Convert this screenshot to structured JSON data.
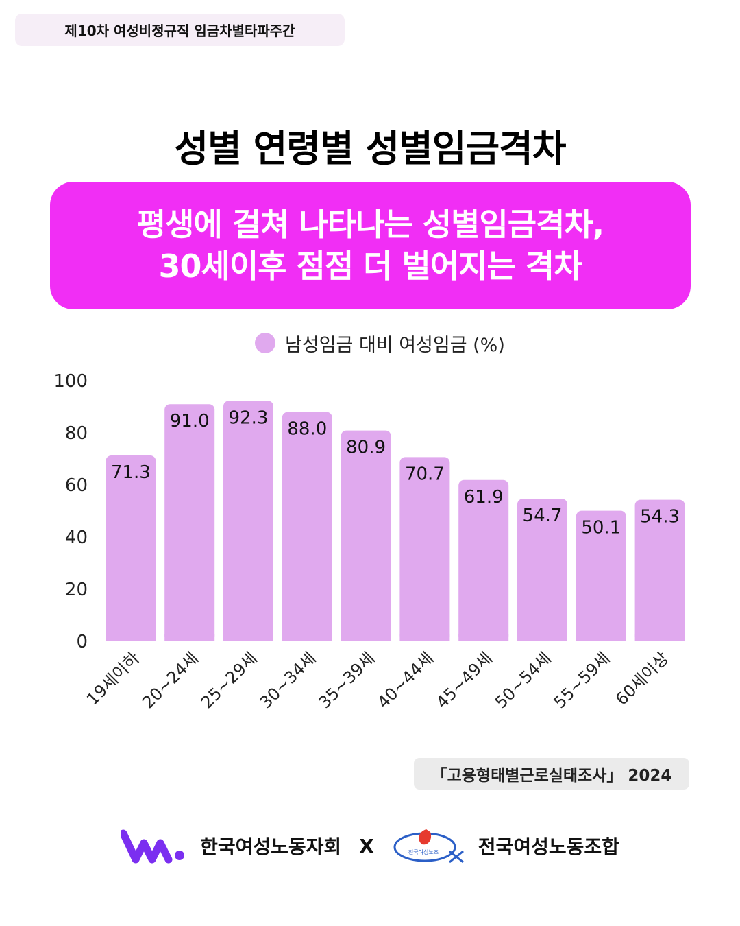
{
  "tag": "제10차 여성비정규직 임금차별타파주간",
  "title": "성별 연령별 성별임금격차",
  "banner": {
    "line1": "평생에 걸쳐 나타나는  성별임금격차,",
    "line2": "30세이후 점점 더 벌어지는 격차"
  },
  "colors": {
    "bar": "#e0a9ee",
    "banner": "#f12ef5",
    "wlogo": "#7b2ff0",
    "union_logo_accent": "#e63a2e",
    "union_logo_line": "#2b5fc7"
  },
  "source": "「고용형태별근로실태조사」 2024",
  "footer": {
    "org1": "한국여성노동자회",
    "separator": "X",
    "org2": "전국여성노동조합",
    "org2_logo_text": "전국여성노조",
    "org1_logo_icon": "w-logo-icon",
    "org2_logo_icon": "union-logo-icon"
  },
  "chart_data": {
    "type": "bar",
    "categories": [
      "19세이하",
      "20~24세",
      "25~29세",
      "30~34세",
      "35~39세",
      "40~44세",
      "45~49세",
      "50~54세",
      "55~59세",
      "60세이상"
    ],
    "series": [
      {
        "name": "남성임금 대비 여성임금 (%)",
        "values": [
          71.3,
          91.0,
          92.3,
          88.0,
          80.9,
          70.7,
          61.9,
          54.7,
          50.1,
          54.3
        ]
      }
    ],
    "data_labels": [
      "71.3",
      "91.0",
      "92.3",
      "88.0",
      "80.9",
      "70.7",
      "61.9",
      "54.7",
      "50.1",
      "54.3"
    ],
    "yticks": [
      "0",
      "20",
      "40",
      "60",
      "80",
      "100"
    ],
    "ylim": [
      0,
      100
    ],
    "grid": false,
    "legend": "top-center"
  }
}
